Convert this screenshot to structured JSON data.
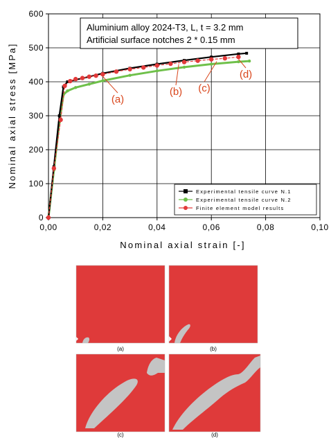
{
  "chart_data": {
    "type": "line",
    "xlabel": "Nominal axial strain [-]",
    "ylabel": "Nominal axial stress [MPa]",
    "xlim": [
      0,
      0.1
    ],
    "ylim": [
      0,
      600
    ],
    "x_ticks": [
      "0,00",
      "0,02",
      "0,04",
      "0,06",
      "0,08",
      "0,10"
    ],
    "y_ticks": [
      "0",
      "100",
      "200",
      "300",
      "400",
      "500",
      "600"
    ],
    "grid": true,
    "legend_position": "bottom-right",
    "annotation_box": {
      "line1": "Aluminium alloy 2024-T3, L, t = 3.2 mm",
      "line2": "Artificial surface notches 2 * 0.15 mm"
    },
    "series": [
      {
        "name": "Experimental tensile curve N.1",
        "color": "#000000",
        "marker": "square",
        "points": [
          [
            0,
            0
          ],
          [
            0.002,
            150
          ],
          [
            0.004,
            300
          ],
          [
            0.0055,
            385
          ],
          [
            0.007,
            400
          ],
          [
            0.01,
            406
          ],
          [
            0.015,
            415
          ],
          [
            0.02,
            425
          ],
          [
            0.03,
            440
          ],
          [
            0.04,
            452
          ],
          [
            0.05,
            463
          ],
          [
            0.06,
            473
          ],
          [
            0.07,
            482
          ],
          [
            0.073,
            484
          ]
        ]
      },
      {
        "name": "Experimental tensile curve N.2",
        "color": "#6fc04a",
        "marker": "circle",
        "points": [
          [
            0,
            0
          ],
          [
            0.002,
            140
          ],
          [
            0.004,
            280
          ],
          [
            0.0055,
            362
          ],
          [
            0.007,
            373
          ],
          [
            0.01,
            383
          ],
          [
            0.015,
            393
          ],
          [
            0.02,
            403
          ],
          [
            0.03,
            419
          ],
          [
            0.04,
            432
          ],
          [
            0.05,
            443
          ],
          [
            0.06,
            452
          ],
          [
            0.07,
            459
          ],
          [
            0.074,
            461
          ]
        ]
      },
      {
        "name": "Finite element model results",
        "color": "#e23a3a",
        "marker": "circle",
        "points": [
          [
            0,
            0
          ],
          [
            0.002,
            145
          ],
          [
            0.0045,
            288
          ],
          [
            0.006,
            388
          ],
          [
            0.008,
            402
          ],
          [
            0.01,
            408
          ],
          [
            0.0125,
            411
          ],
          [
            0.015,
            415
          ],
          [
            0.0175,
            418
          ],
          [
            0.02,
            422
          ],
          [
            0.025,
            430
          ],
          [
            0.03,
            437
          ],
          [
            0.035,
            442
          ],
          [
            0.04,
            448
          ],
          [
            0.045,
            453
          ],
          [
            0.05,
            458
          ],
          [
            0.055,
            462
          ],
          [
            0.06,
            466
          ],
          [
            0.065,
            469
          ],
          [
            0.07,
            473
          ]
        ]
      }
    ],
    "callouts": [
      {
        "label": "(a)",
        "x": 0.02,
        "y": 422
      },
      {
        "label": "(b)",
        "x": 0.048,
        "y": 458
      },
      {
        "label": "(c)",
        "x": 0.062,
        "y": 466
      },
      {
        "label": "(d)",
        "x": 0.07,
        "y": 473
      }
    ]
  },
  "panels": [
    {
      "label": "(a)"
    },
    {
      "label": "(b)"
    },
    {
      "label": "(c)"
    },
    {
      "label": "(d)"
    }
  ],
  "colors": {
    "panel_fill": "#df3a3a",
    "crack_fill": "#c4c4c4",
    "callout": "#d9461c"
  }
}
